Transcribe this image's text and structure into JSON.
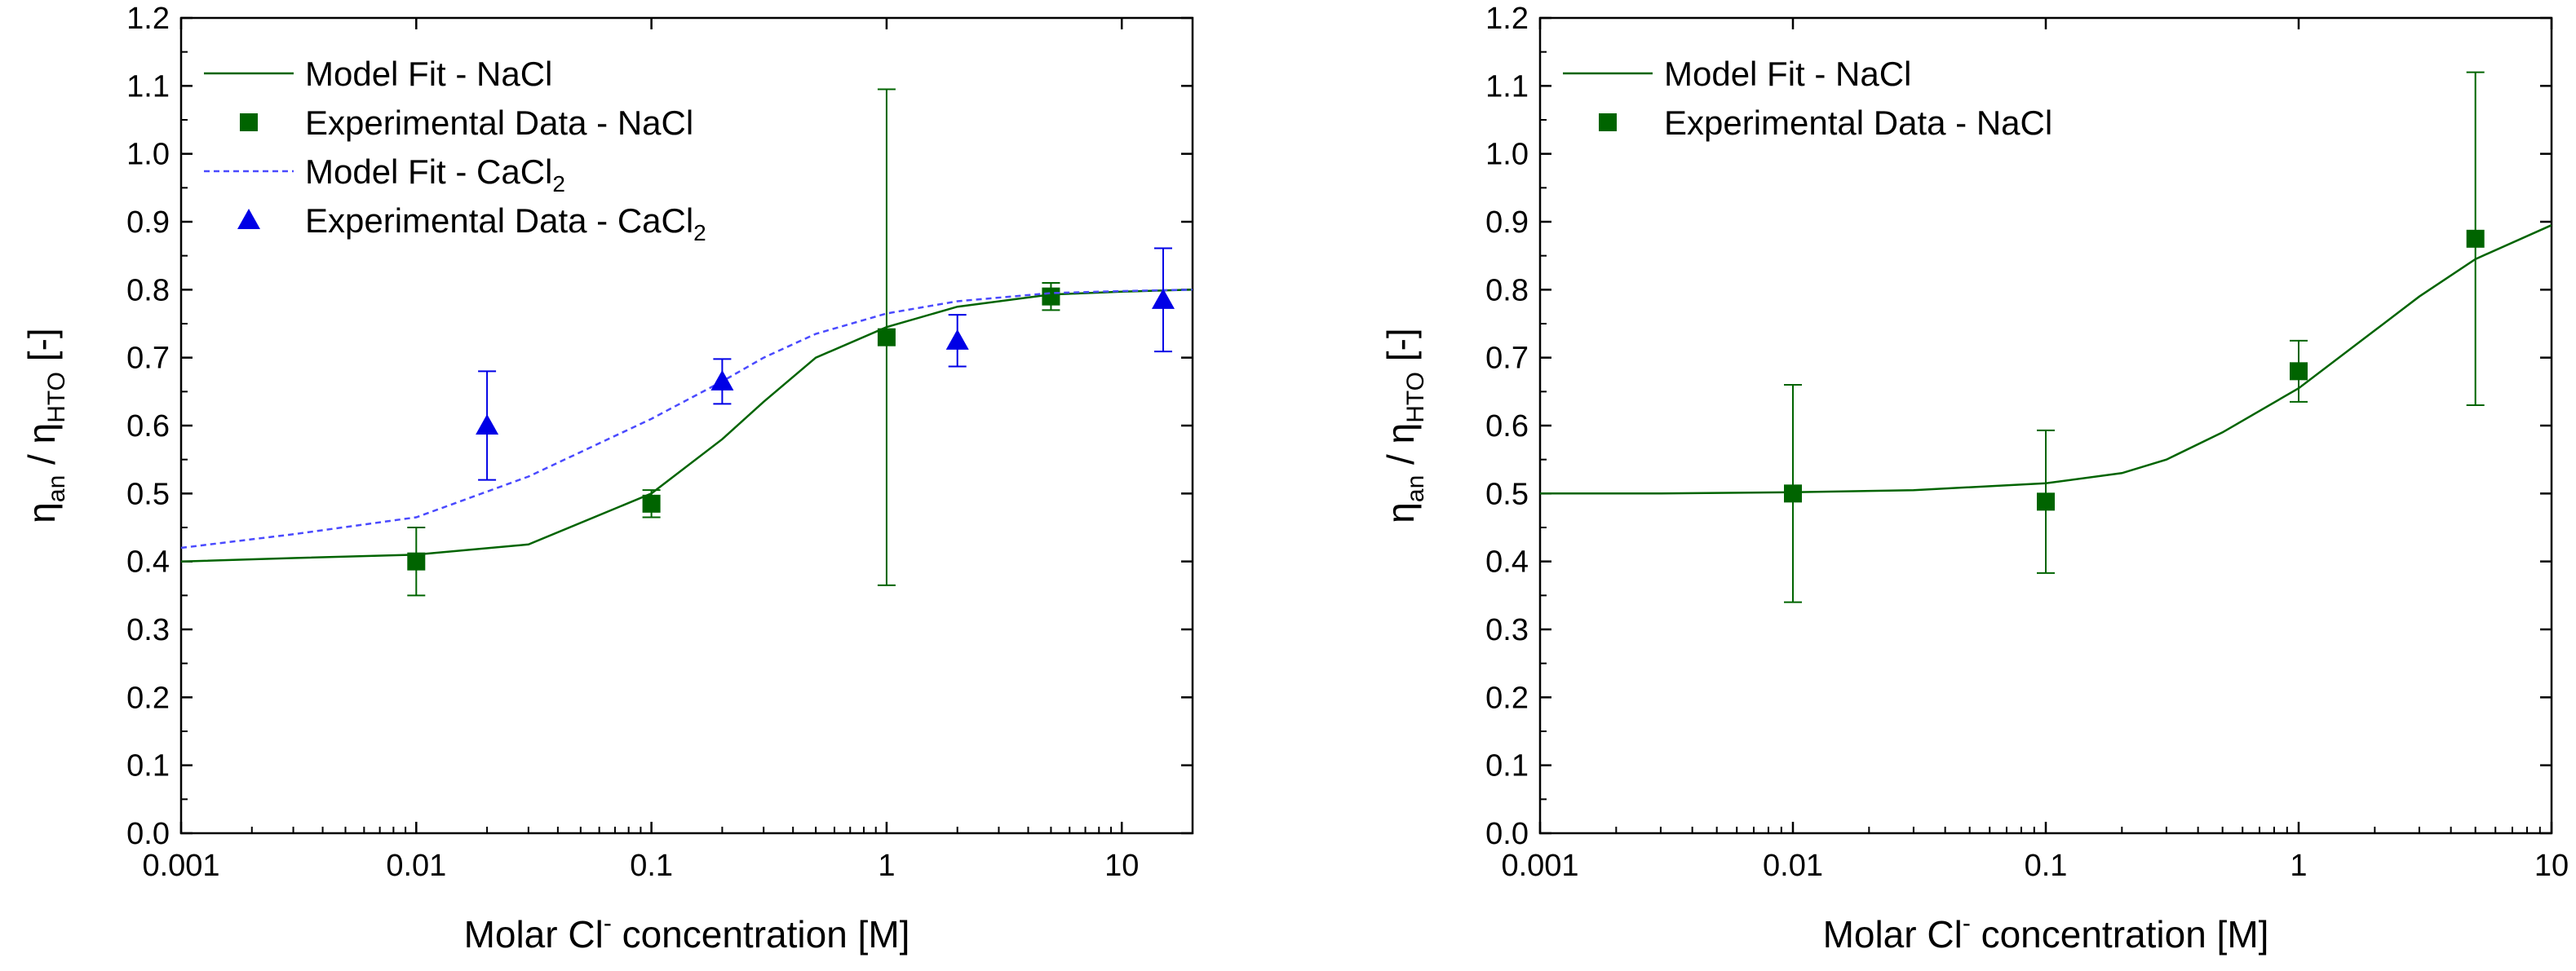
{
  "colors": {
    "nacl": "#006400",
    "cacl2": "#0000e6",
    "fit_cacl2": "#4a4aff"
  },
  "chart_data": [
    {
      "type": "scatter",
      "xscale": "log",
      "xlim": [
        0.001,
        20
      ],
      "ylim": [
        0.0,
        1.2
      ],
      "xticks": [
        "0.001",
        "0.01",
        "0.1",
        "1",
        "10"
      ],
      "yticks": [
        "0.0",
        "0.1",
        "0.2",
        "0.3",
        "0.4",
        "0.5",
        "0.6",
        "0.7",
        "0.8",
        "0.9",
        "1.0",
        "1.1",
        "1.2"
      ],
      "xlabel": {
        "main": "Molar Cl",
        "sup": "-",
        "rest": " concentration [M]"
      },
      "ylabel": {
        "p1": "η",
        "s1": "an",
        "p2": " / η",
        "s2": "HTO",
        "p3": " [-]"
      },
      "legend_position": "top-left",
      "series": [
        {
          "name": "Model Fit - NaCl",
          "kind": "line",
          "style": "solid",
          "color": "#006400",
          "x": [
            0.001,
            0.003,
            0.01,
            0.03,
            0.1,
            0.2,
            0.3,
            0.5,
            1,
            2,
            5,
            10,
            20
          ],
          "y": [
            0.4,
            0.405,
            0.41,
            0.425,
            0.5,
            0.58,
            0.635,
            0.7,
            0.745,
            0.775,
            0.793,
            0.797,
            0.8
          ]
        },
        {
          "name": "Experimental Data - NaCl",
          "kind": "points",
          "marker": "square",
          "color": "#006400",
          "x": [
            0.01,
            0.1,
            1,
            5
          ],
          "y": [
            0.4,
            0.485,
            0.73,
            0.79
          ],
          "err": [
            0.05,
            0.02,
            0.365,
            0.02
          ]
        },
        {
          "name": "Model Fit - CaCl",
          "name_sub": "2",
          "kind": "line",
          "style": "dashed",
          "color": "#4a4aff",
          "x": [
            0.001,
            0.003,
            0.01,
            0.03,
            0.1,
            0.2,
            0.3,
            0.5,
            1,
            2,
            5,
            10,
            20
          ],
          "y": [
            0.42,
            0.44,
            0.465,
            0.525,
            0.61,
            0.665,
            0.7,
            0.735,
            0.765,
            0.783,
            0.795,
            0.798,
            0.8
          ]
        },
        {
          "name": "Experimental Data - CaCl",
          "name_sub": "2",
          "kind": "points",
          "marker": "triangle",
          "color": "#0000e6",
          "x": [
            0.02,
            0.2,
            2,
            15
          ],
          "y": [
            0.6,
            0.665,
            0.725,
            0.785
          ],
          "err": [
            0.08,
            0.033,
            0.038,
            0.076
          ]
        }
      ]
    },
    {
      "type": "scatter",
      "xscale": "log",
      "xlim": [
        0.001,
        10
      ],
      "ylim": [
        0.0,
        1.2
      ],
      "xticks": [
        "0.001",
        "0.01",
        "0.1",
        "1",
        "10"
      ],
      "yticks": [
        "0.0",
        "0.1",
        "0.2",
        "0.3",
        "0.4",
        "0.5",
        "0.6",
        "0.7",
        "0.8",
        "0.9",
        "1.0",
        "1.1",
        "1.2"
      ],
      "xlabel": {
        "main": "Molar Cl",
        "sup": "-",
        "rest": " concentration [M]"
      },
      "ylabel": {
        "p1": "η",
        "s1": "an",
        "p2": " / η",
        "s2": "HTO",
        "p3": " [-]"
      },
      "legend_position": "top-left",
      "series": [
        {
          "name": "Model Fit - NaCl",
          "kind": "line",
          "style": "solid",
          "color": "#006400",
          "x": [
            0.001,
            0.003,
            0.01,
            0.03,
            0.1,
            0.2,
            0.3,
            0.5,
            1,
            2,
            3,
            5,
            10
          ],
          "y": [
            0.5,
            0.5,
            0.502,
            0.505,
            0.515,
            0.53,
            0.55,
            0.59,
            0.655,
            0.74,
            0.79,
            0.845,
            0.895
          ]
        },
        {
          "name": "Experimental Data - NaCl",
          "kind": "points",
          "marker": "square",
          "color": "#006400",
          "x": [
            0.01,
            0.1,
            1,
            5
          ],
          "y": [
            0.5,
            0.488,
            0.68,
            0.875
          ],
          "err": [
            0.16,
            0.105,
            0.045,
            0.245
          ]
        }
      ]
    }
  ]
}
